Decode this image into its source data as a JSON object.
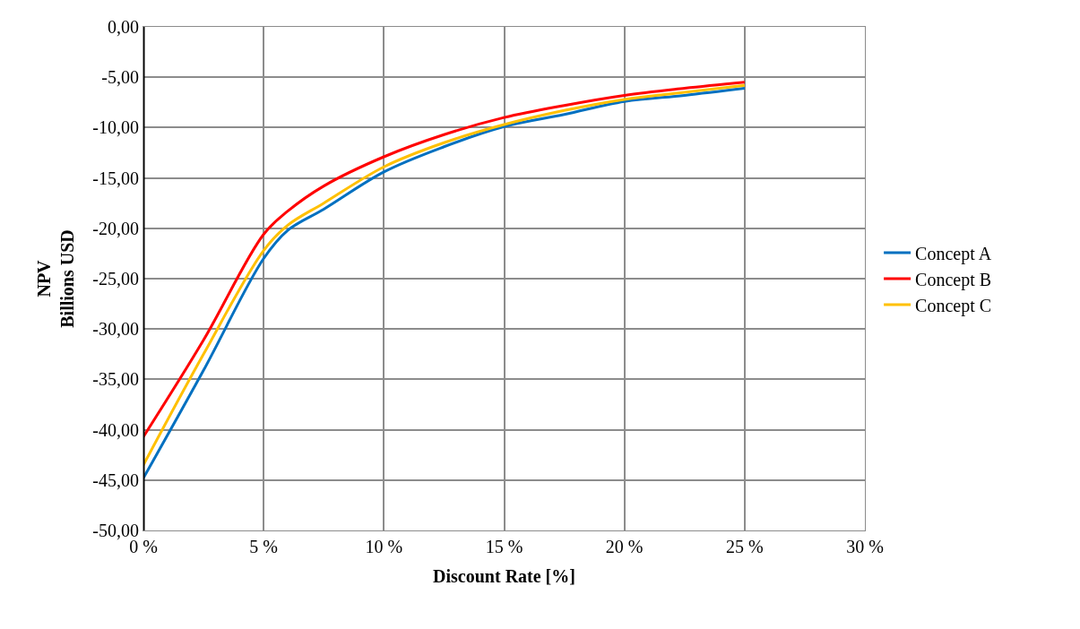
{
  "chart_data": {
    "type": "line",
    "xlabel": "Discount Rate [%]",
    "ylabel": "NPV\nBillions USD",
    "x": [
      0,
      2.5,
      5,
      6,
      7.5,
      10,
      12.5,
      15,
      17.5,
      20,
      22.5,
      25
    ],
    "series": [
      {
        "name": "Concept A",
        "color": "#0070c0",
        "values": [
          -44.8,
          -34.1,
          -23.0,
          -20.2,
          -18.1,
          -14.4,
          -11.9,
          -9.9,
          -8.7,
          -7.4,
          -6.8,
          -6.1
        ]
      },
      {
        "name": "Concept B",
        "color": "#ff0000",
        "values": [
          -40.7,
          -31.1,
          -20.6,
          -18.3,
          -15.8,
          -12.9,
          -10.7,
          -9.0,
          -7.8,
          -6.8,
          -6.1,
          -5.5
        ]
      },
      {
        "name": "Concept C",
        "color": "#ffc000",
        "values": [
          -43.5,
          -32.5,
          -22.2,
          -19.7,
          -17.5,
          -13.9,
          -11.5,
          -9.7,
          -8.3,
          -7.2,
          -6.5,
          -5.8
        ]
      }
    ],
    "xlim": [
      0,
      30
    ],
    "ylim": [
      -50,
      0
    ],
    "xticks": [
      {
        "value": 0,
        "label": "0 %"
      },
      {
        "value": 5,
        "label": "5 %"
      },
      {
        "value": 10,
        "label": "10 %"
      },
      {
        "value": 15,
        "label": "15 %"
      },
      {
        "value": 20,
        "label": "20 %"
      },
      {
        "value": 25,
        "label": "25 %"
      },
      {
        "value": 30,
        "label": "30 %"
      }
    ],
    "yticks": [
      {
        "value": 0,
        "label": "0,00"
      },
      {
        "value": -5,
        "label": "-5,00"
      },
      {
        "value": -10,
        "label": "-10,00"
      },
      {
        "value": -15,
        "label": "-15,00"
      },
      {
        "value": -20,
        "label": "-20,00"
      },
      {
        "value": -25,
        "label": "-25,00"
      },
      {
        "value": -30,
        "label": "-30,00"
      },
      {
        "value": -35,
        "label": "-35,00"
      },
      {
        "value": -40,
        "label": "-40,00"
      },
      {
        "value": -45,
        "label": "-45,00"
      },
      {
        "value": -50,
        "label": "-50,00"
      }
    ],
    "grid": true,
    "legend": "right",
    "line_style": "solid",
    "marker": "none"
  }
}
